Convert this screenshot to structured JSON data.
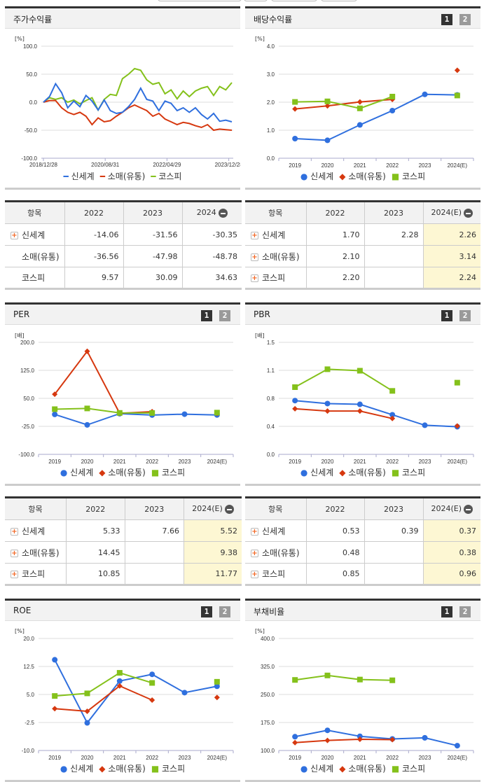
{
  "panels": {
    "stock_return": {
      "title": "주가수익률",
      "unit": "[%]"
    },
    "dividend": {
      "title": "배당수익률",
      "unit": "[%]",
      "page1": "1",
      "page2": "2"
    },
    "per": {
      "title": "PER",
      "unit": "[배]",
      "page1": "1",
      "page2": "2"
    },
    "pbr": {
      "title": "PBR",
      "unit": "[배]",
      "page1": "1",
      "page2": "2"
    },
    "roe": {
      "title": "ROE",
      "unit": "[%]",
      "page1": "1",
      "page2": "2"
    },
    "debt": {
      "title": "부채비율",
      "unit": "[%]",
      "page1": "1",
      "page2": "2"
    }
  },
  "legend": [
    "신세계",
    "소매(유통)",
    "코스피"
  ],
  "colors": {
    "blue": "#2f6fde",
    "red": "#d6380f",
    "green": "#84c11b"
  },
  "tables": {
    "stock_return": {
      "headers": [
        "항목",
        "2022",
        "2023",
        "2024"
      ],
      "rows": [
        {
          "name": "신세계",
          "values": [
            "-14.06",
            "-31.56",
            "-30.35"
          ],
          "expandable": true
        },
        {
          "name": "소매(유통)",
          "values": [
            "-36.56",
            "-47.98",
            "-48.78"
          ],
          "expandable": false
        },
        {
          "name": "코스피",
          "values": [
            "9.57",
            "30.09",
            "34.63"
          ],
          "expandable": false
        }
      ]
    },
    "dividend": {
      "headers": [
        "항목",
        "2022",
        "2023",
        "2024(E)"
      ],
      "rows": [
        {
          "name": "신세계",
          "values": [
            "1.70",
            "2.28",
            "2.26"
          ]
        },
        {
          "name": "소매(유통)",
          "values": [
            "2.10",
            "",
            "3.14"
          ]
        },
        {
          "name": "코스피",
          "values": [
            "2.20",
            "",
            "2.24"
          ]
        }
      ]
    },
    "per": {
      "headers": [
        "항목",
        "2022",
        "2023",
        "2024(E)"
      ],
      "rows": [
        {
          "name": "신세계",
          "values": [
            "5.33",
            "7.66",
            "5.52"
          ]
        },
        {
          "name": "소매(유통)",
          "values": [
            "14.45",
            "",
            "9.38"
          ]
        },
        {
          "name": "코스피",
          "values": [
            "10.85",
            "",
            "11.77"
          ]
        }
      ]
    },
    "pbr": {
      "headers": [
        "항목",
        "2022",
        "2023",
        "2024(E)"
      ],
      "rows": [
        {
          "name": "신세계",
          "values": [
            "0.53",
            "0.39",
            "0.37"
          ]
        },
        {
          "name": "소매(유통)",
          "values": [
            "0.48",
            "",
            "0.38"
          ]
        },
        {
          "name": "코스피",
          "values": [
            "0.85",
            "",
            "0.96"
          ]
        }
      ]
    }
  },
  "chart_data": [
    {
      "type": "line",
      "title": "주가수익률",
      "ylabel": "[%]",
      "ylim": [
        -100,
        100
      ],
      "yticks": [
        "100.0",
        "50.0",
        "0.0",
        "-50.0",
        "-100.0"
      ],
      "xticks": [
        "2018/12/28",
        "2020/08/31",
        "2022/04/29",
        "2023/12/28"
      ],
      "series": [
        {
          "name": "신세계",
          "values": [
            0,
            10,
            33,
            17,
            -10,
            2,
            -8,
            12,
            2,
            -14,
            4,
            -15,
            -20,
            -18,
            -8,
            5,
            25,
            5,
            2,
            -15,
            2,
            -2,
            -15,
            -10,
            -18,
            -10,
            -22,
            -30,
            -20,
            -34,
            -32,
            -35
          ]
        },
        {
          "name": "소매(유통)",
          "values": [
            0,
            3,
            3,
            -10,
            -18,
            -22,
            -18,
            -25,
            -40,
            -28,
            -35,
            -33,
            -25,
            -18,
            -10,
            -5,
            -10,
            -15,
            -25,
            -20,
            -30,
            -35,
            -40,
            -36,
            -38,
            -42,
            -45,
            -40,
            -50,
            -48,
            -49,
            -50
          ]
        },
        {
          "name": "코스피",
          "values": [
            0,
            8,
            5,
            8,
            0,
            4,
            -3,
            3,
            8,
            -14,
            5,
            14,
            12,
            42,
            50,
            60,
            57,
            40,
            32,
            35,
            15,
            22,
            6,
            20,
            10,
            20,
            25,
            28,
            12,
            28,
            22,
            35
          ]
        }
      ]
    },
    {
      "type": "line",
      "title": "배당수익률",
      "ylabel": "[%]",
      "ylim": [
        0,
        4
      ],
      "categories": [
        "2019",
        "2020",
        "2021",
        "2022",
        "2023",
        "2024(E)"
      ],
      "series": [
        {
          "name": "신세계",
          "values": [
            0.7,
            0.64,
            1.19,
            1.7,
            2.28,
            2.26
          ]
        },
        {
          "name": "소매(유통)",
          "values": [
            1.76,
            1.87,
            2.01,
            2.1,
            null,
            3.14
          ]
        },
        {
          "name": "코스피",
          "values": [
            2.01,
            2.03,
            1.78,
            2.2,
            null,
            2.24
          ]
        }
      ]
    },
    {
      "type": "line",
      "title": "PER",
      "ylabel": "[배]",
      "ylim": [
        -100,
        200
      ],
      "categories": [
        "2019",
        "2020",
        "2021",
        "2022",
        "2023",
        "2024(E)"
      ],
      "series": [
        {
          "name": "신세계",
          "values": [
            7,
            -21,
            9,
            5.33,
            7.66,
            5.52
          ]
        },
        {
          "name": "소매(유통)",
          "values": [
            61,
            176,
            10,
            14.45,
            null,
            9.38
          ]
        },
        {
          "name": "코스피",
          "values": [
            21,
            23,
            11,
            10.85,
            null,
            11.77
          ]
        }
      ]
    },
    {
      "type": "line",
      "title": "PBR",
      "ylabel": "[배]",
      "ylim": [
        0,
        1.5
      ],
      "categories": [
        "2019",
        "2020",
        "2021",
        "2022",
        "2023",
        "2024(E)"
      ],
      "series": [
        {
          "name": "신세계",
          "values": [
            0.72,
            0.68,
            0.67,
            0.53,
            0.39,
            0.37
          ]
        },
        {
          "name": "소매(유통)",
          "values": [
            0.61,
            0.58,
            0.58,
            0.48,
            null,
            0.38
          ]
        },
        {
          "name": "코스피",
          "values": [
            0.9,
            1.14,
            1.12,
            0.85,
            null,
            0.96
          ]
        }
      ]
    },
    {
      "type": "line",
      "title": "ROE",
      "ylabel": "[%]",
      "ylim": [
        -10,
        20
      ],
      "categories": [
        "2019",
        "2020",
        "2021",
        "2022",
        "2023",
        "2024(E)"
      ],
      "series": [
        {
          "name": "신세계",
          "values": [
            14.3,
            -2.6,
            8.6,
            10.4,
            5.5,
            7.2
          ]
        },
        {
          "name": "소매(유통)",
          "values": [
            1.2,
            0.5,
            7.3,
            3.5,
            null,
            4.2
          ]
        },
        {
          "name": "코스피",
          "values": [
            4.6,
            5.3,
            10.8,
            8.1,
            null,
            8.4
          ]
        }
      ]
    },
    {
      "type": "line",
      "title": "부채비율",
      "ylabel": "[%]",
      "ylim": [
        100,
        400
      ],
      "categories": [
        "2019",
        "2020",
        "2021",
        "2022",
        "2023",
        "2024(E)"
      ],
      "series": [
        {
          "name": "신세계",
          "values": [
            137,
            154,
            138,
            131,
            134,
            113
          ]
        },
        {
          "name": "소매(유통)",
          "values": [
            121,
            127,
            130,
            129,
            null,
            null
          ]
        },
        {
          "name": "코스피",
          "values": [
            289,
            301,
            290,
            288,
            null,
            null
          ]
        }
      ]
    }
  ]
}
